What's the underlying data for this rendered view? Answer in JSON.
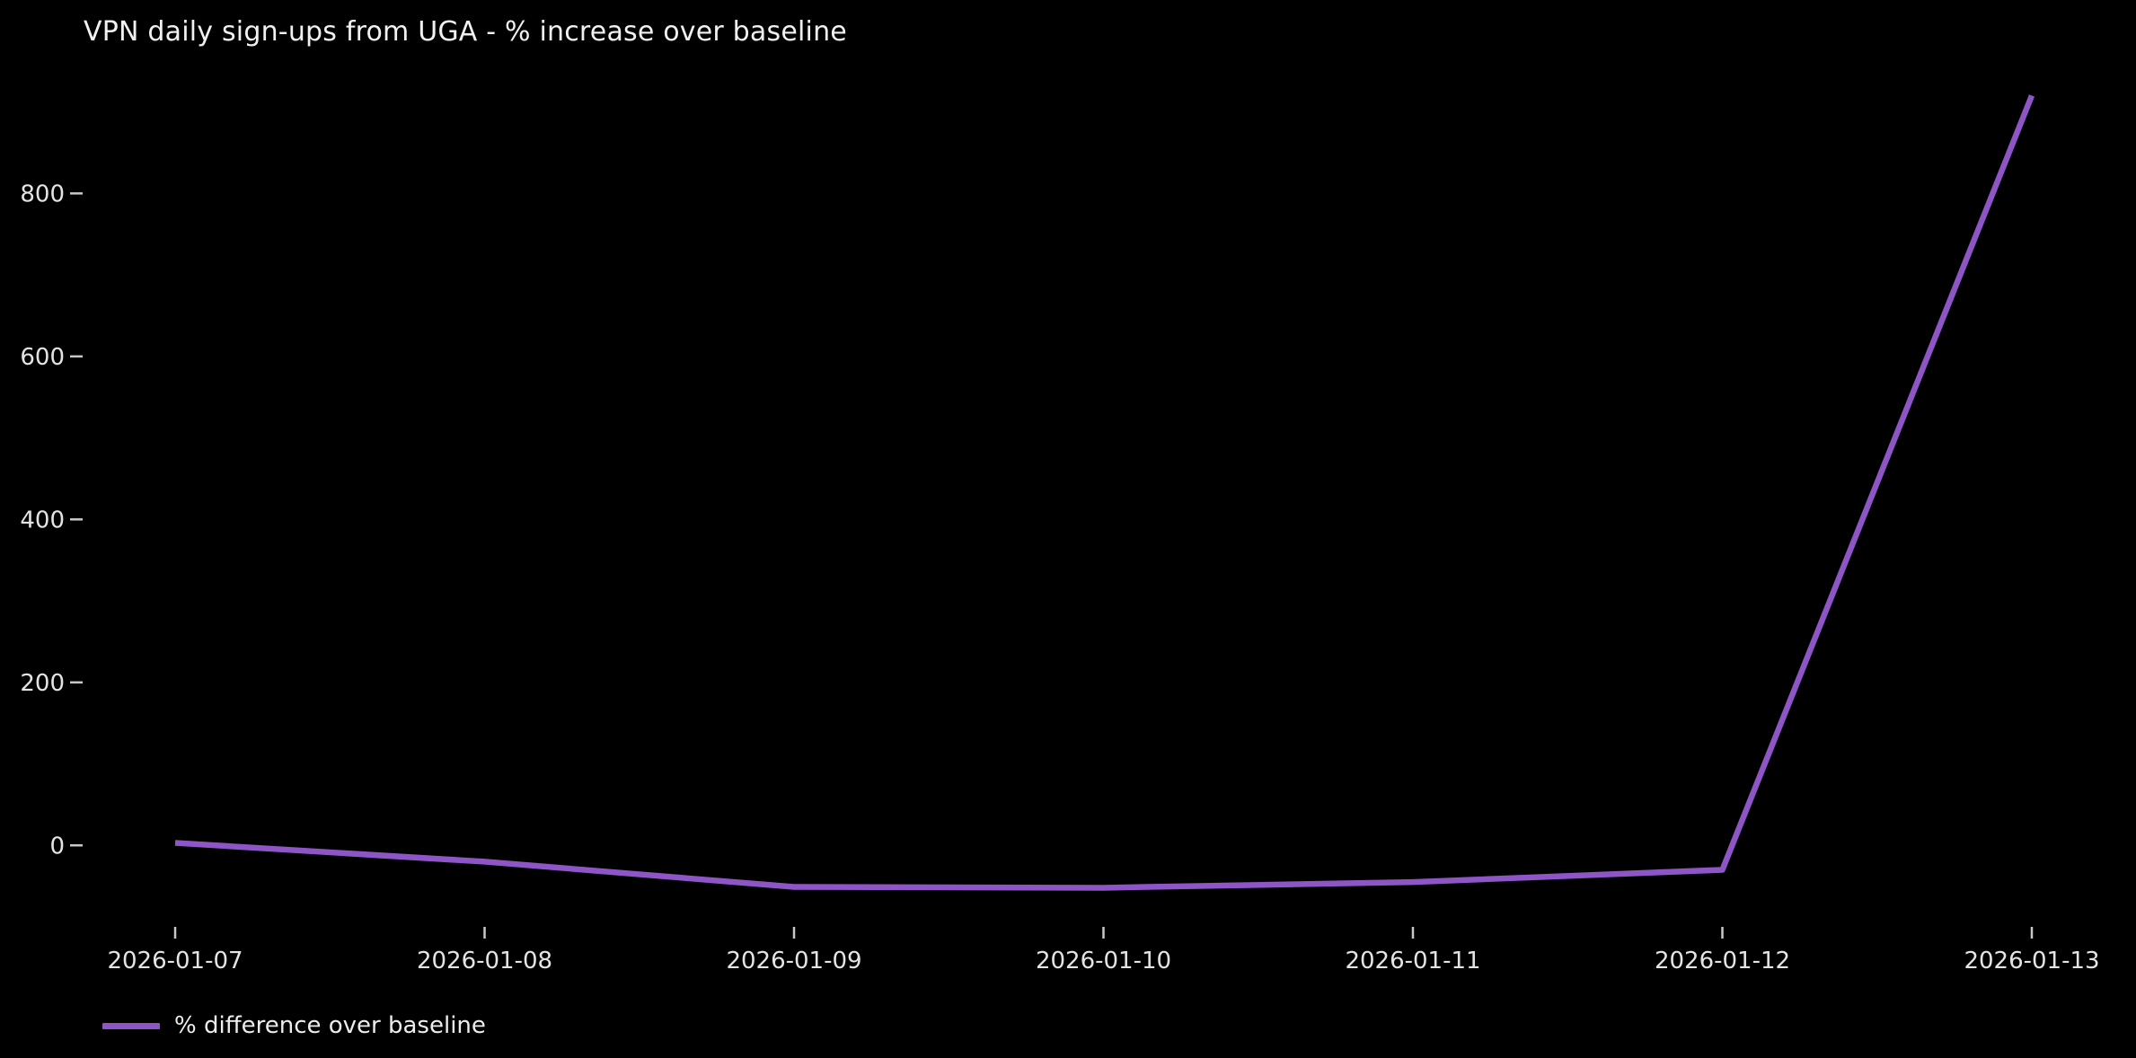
{
  "chart_data": {
    "type": "line",
    "title": "VPN daily sign-ups from UGA - % increase over baseline",
    "categories": [
      "2026-01-07",
      "2026-01-08",
      "2026-01-09",
      "2026-01-10",
      "2026-01-11",
      "2026-01-12",
      "2026-01-13"
    ],
    "series": [
      {
        "name": "% difference over baseline",
        "values": [
          3,
          -20,
          -51,
          -52,
          -45,
          -30,
          920
        ],
        "color": "#8d55c5"
      }
    ],
    "xlabel": "",
    "ylabel": "",
    "yticks": [
      0,
      200,
      400,
      600,
      800
    ],
    "ylim": [
      -100,
      969
    ],
    "grid": false,
    "legend_position": "lower-left-outside",
    "colors": {
      "background": "#000000",
      "title_text": "#f1f1f1",
      "tick_text": "#e4e4e4",
      "tick_mark": "#c8c8c8"
    }
  }
}
